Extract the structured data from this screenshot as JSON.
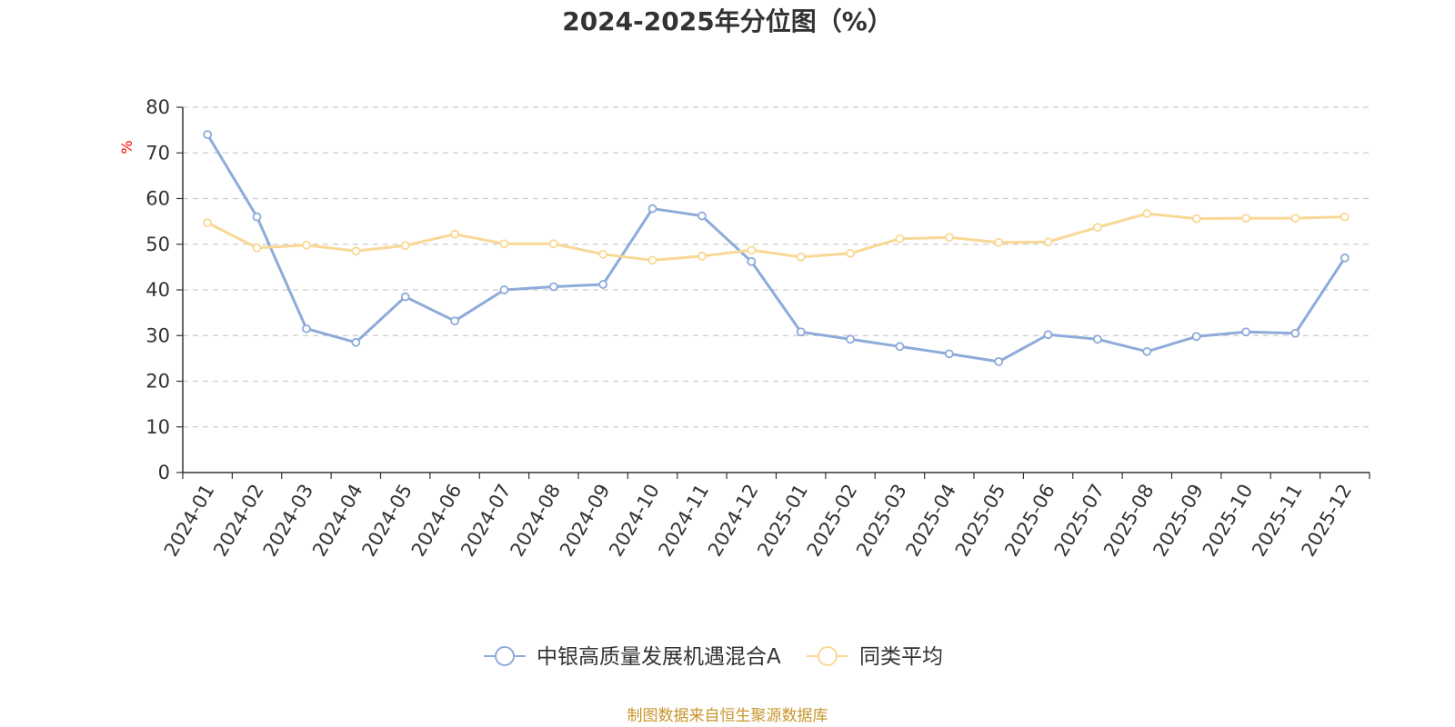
{
  "chart_data": {
    "type": "line",
    "title": "2024-2025年分位图（%）",
    "ylabel": "%",
    "xlabel": "",
    "ylim": [
      0,
      80
    ],
    "yticks": [
      0,
      10,
      20,
      30,
      40,
      50,
      60,
      70,
      80
    ],
    "grid": true,
    "legend_position": "bottom-center",
    "categories": [
      "2024-01",
      "2024-02",
      "2024-03",
      "2024-04",
      "2024-05",
      "2024-06",
      "2024-07",
      "2024-08",
      "2024-09",
      "2024-10",
      "2024-11",
      "2024-12",
      "2025-01",
      "2025-02",
      "2025-03",
      "2025-04",
      "2025-05",
      "2025-06",
      "2025-07",
      "2025-08",
      "2025-09",
      "2025-10",
      "2025-11",
      "2025-12"
    ],
    "series": [
      {
        "name": "中银高质量发展机遇混合A",
        "color": "#8eabd9",
        "values": [
          74,
          56,
          31.5,
          28.5,
          38.5,
          33.2,
          40,
          40.7,
          41.2,
          57.8,
          56.2,
          46.2,
          30.8,
          29.2,
          27.6,
          26,
          24.3,
          30.2,
          29.2,
          26.5,
          29.8,
          30.8,
          30.5,
          47
        ]
      },
      {
        "name": "同类平均",
        "color": "#f9d895",
        "values": [
          54.7,
          49.2,
          49.8,
          48.5,
          49.7,
          52.2,
          50.1,
          50.1,
          47.8,
          46.5,
          47.4,
          48.7,
          47.2,
          48,
          51.2,
          51.5,
          50.4,
          50.5,
          53.7,
          56.7,
          55.6,
          55.7,
          55.7,
          56
        ]
      }
    ],
    "source": "制图数据来自恒生聚源数据库"
  },
  "colors": {
    "axis": "#333333",
    "grid": "#cccccc",
    "ylabel": "#ff0000",
    "source": "#c8962d"
  }
}
